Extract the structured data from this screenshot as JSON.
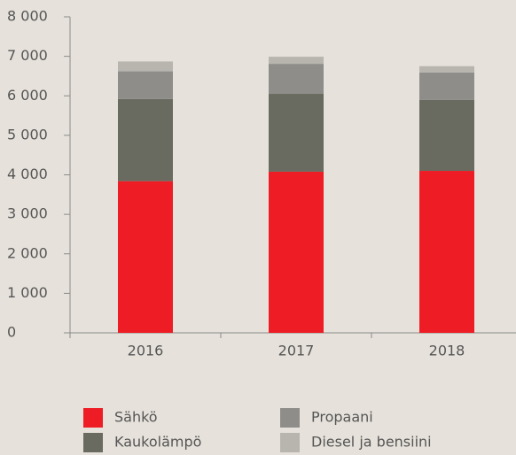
{
  "chart_data": {
    "type": "stacked_bar",
    "categories": [
      "2016",
      "2017",
      "2018"
    ],
    "series": [
      {
        "name": "Sähkö",
        "color": "#ee1c25",
        "values": [
          3840,
          4080,
          4100
        ]
      },
      {
        "name": "Kaukolämpö",
        "color": "#696b60",
        "values": [
          2080,
          1970,
          1800
        ]
      },
      {
        "name": "Propaani",
        "color": "#8e8d8a",
        "values": [
          700,
          760,
          690
        ]
      },
      {
        "name": "Diesel ja bensiini",
        "color": "#b7b5ae",
        "values": [
          250,
          180,
          160
        ]
      }
    ],
    "ylim": [
      0,
      8000
    ],
    "yticks": [
      0,
      {
        "value": 1000,
        "label": "1 000"
      },
      {
        "value": 2000,
        "label": "2 000"
      },
      {
        "value": 3000,
        "label": "3 000"
      },
      {
        "value": 4000,
        "label": "4 000"
      },
      {
        "value": 5000,
        "label": "5 000"
      },
      {
        "value": 6000,
        "label": "6 000"
      },
      {
        "value": 7000,
        "label": "7 000"
      },
      {
        "value": 8000,
        "label": "8 000"
      }
    ],
    "grid": false
  }
}
